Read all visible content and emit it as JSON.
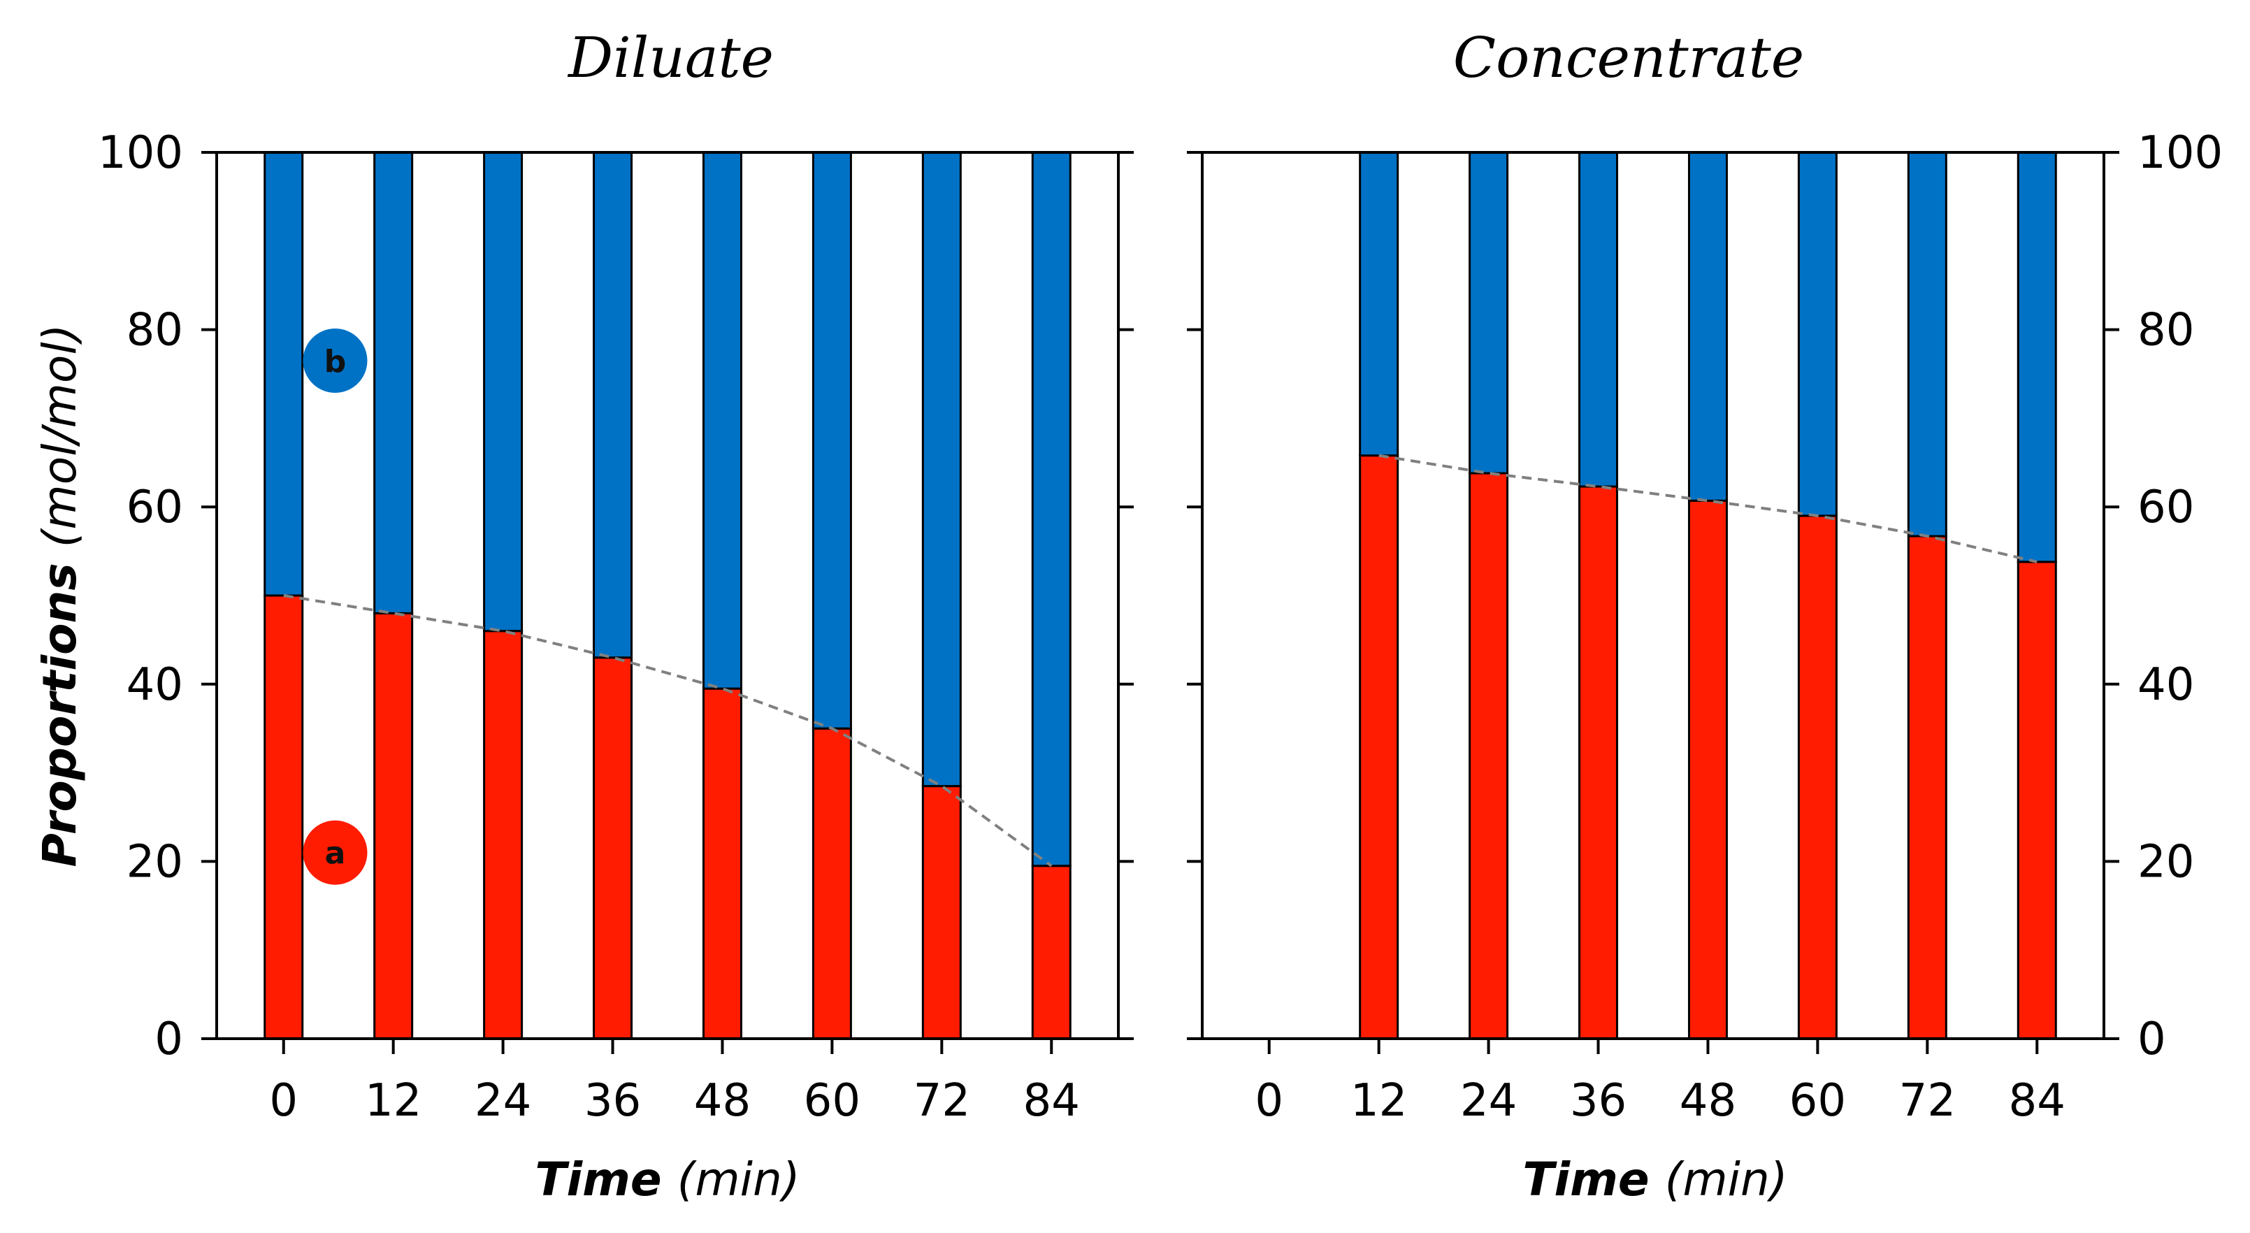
{
  "colors": {
    "series_a": "#FF1C00",
    "series_b": "#0072C6",
    "trend": "#808080",
    "axis": "#000000"
  },
  "chart_data": [
    {
      "type": "bar",
      "stacked": true,
      "title": "Diluate",
      "xlabel_bold": "Time",
      "xlabel_unit": "(min)",
      "ylabel_bold": "Proportions",
      "ylabel_unit": "(mol/mol)",
      "categories": [
        "0",
        "12",
        "24",
        "36",
        "48",
        "60",
        "72",
        "84"
      ],
      "ylim": [
        0,
        100
      ],
      "yticks": [
        "0",
        "20",
        "40",
        "60",
        "80",
        "100"
      ],
      "series": [
        {
          "name": "a",
          "values": [
            50,
            48,
            46,
            43,
            39.5,
            35,
            28.5,
            19.5
          ]
        },
        {
          "name": "b",
          "values": [
            50,
            52,
            54,
            57,
            60.5,
            65,
            71.5,
            80.5
          ]
        }
      ],
      "trend_line": "dashed line through top of series a",
      "markers": [
        {
          "label": "b",
          "series": "b"
        },
        {
          "label": "a",
          "series": "a"
        }
      ]
    },
    {
      "type": "bar",
      "stacked": true,
      "title": "Concentrate",
      "xlabel_bold": "Time",
      "xlabel_unit": "(min)",
      "categories": [
        "0",
        "12",
        "24",
        "36",
        "48",
        "60",
        "72",
        "84"
      ],
      "ylim": [
        0,
        100
      ],
      "yticks": [
        "0",
        "20",
        "40",
        "60",
        "80",
        "100"
      ],
      "series": [
        {
          "name": "a",
          "values": [
            null,
            65.8,
            63.8,
            62.3,
            60.7,
            59,
            56.7,
            53.8
          ]
        },
        {
          "name": "b",
          "values": [
            null,
            34.2,
            36.2,
            37.7,
            39.3,
            41,
            43.3,
            46.2
          ]
        }
      ],
      "trend_line": "dashed line through top of series a"
    }
  ]
}
